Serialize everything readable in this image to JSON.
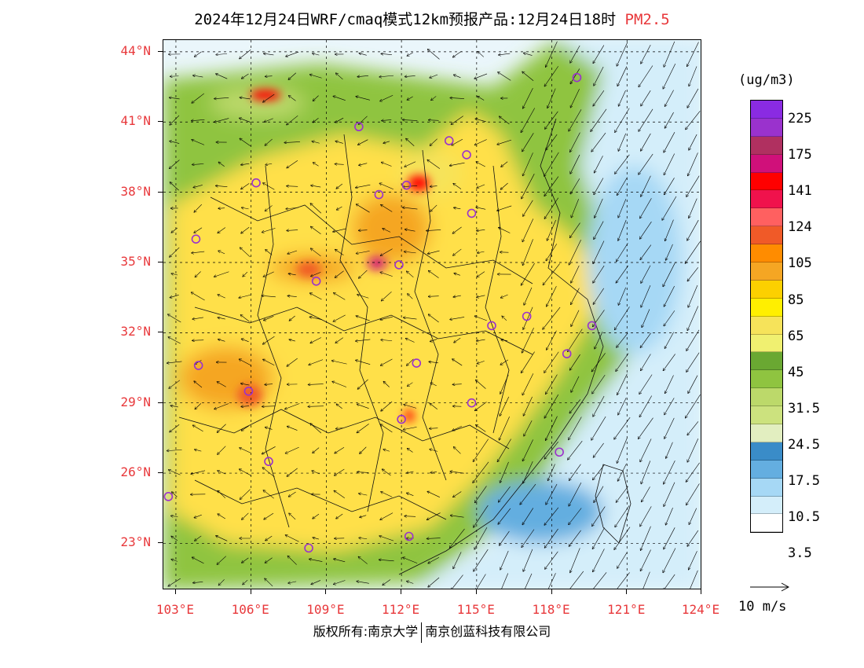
{
  "header": {
    "title": "2024年12月24日WRF/cmaq模式12km预报产品:12月24日18时",
    "pollutant": "PM2.5"
  },
  "map": {
    "lat_labels": [
      "44°N",
      "41°N",
      "38°N",
      "35°N",
      "32°N",
      "29°N",
      "26°N",
      "23°N"
    ],
    "lon_labels": [
      "103°E",
      "106°E",
      "109°E",
      "112°E",
      "115°E",
      "118°E",
      "121°E",
      "124°E"
    ],
    "lat_range": [
      21,
      44.5
    ],
    "lon_range": [
      102.5,
      124
    ],
    "cities": [
      {
        "lon": 119.0,
        "lat": 42.9
      },
      {
        "lon": 110.3,
        "lat": 40.8
      },
      {
        "lon": 113.9,
        "lat": 40.2
      },
      {
        "lon": 114.6,
        "lat": 39.6
      },
      {
        "lon": 106.2,
        "lat": 38.4
      },
      {
        "lon": 112.2,
        "lat": 38.3
      },
      {
        "lon": 111.1,
        "lat": 37.9
      },
      {
        "lon": 114.8,
        "lat": 37.1
      },
      {
        "lon": 103.8,
        "lat": 36.0
      },
      {
        "lon": 111.9,
        "lat": 34.9
      },
      {
        "lon": 108.6,
        "lat": 34.2
      },
      {
        "lon": 117.0,
        "lat": 32.7
      },
      {
        "lon": 115.6,
        "lat": 32.3
      },
      {
        "lon": 119.6,
        "lat": 32.3
      },
      {
        "lon": 103.9,
        "lat": 30.6
      },
      {
        "lon": 112.6,
        "lat": 30.7
      },
      {
        "lon": 118.6,
        "lat": 31.1
      },
      {
        "lon": 105.9,
        "lat": 29.5
      },
      {
        "lon": 114.8,
        "lat": 29.0
      },
      {
        "lon": 112.0,
        "lat": 28.3
      },
      {
        "lon": 118.3,
        "lat": 26.9
      },
      {
        "lon": 106.7,
        "lat": 26.5
      },
      {
        "lon": 102.7,
        "lat": 25.0
      },
      {
        "lon": 108.3,
        "lat": 22.8
      },
      {
        "lon": 112.3,
        "lat": 23.3
      }
    ]
  },
  "legend": {
    "unit": "(ug/m3)",
    "colors": [
      "#8a2be2",
      "#9a32cd",
      "#b03060",
      "#d0107a",
      "#ff0000",
      "#f0124c",
      "#ff6060",
      "#f05a28",
      "#ff8c00",
      "#f5a623",
      "#fcd000",
      "#ffef00",
      "#f6e35a",
      "#f0f070",
      "#6aa832",
      "#8fc440",
      "#bcd96a",
      "#cce27e",
      "#e2eec0",
      "#3a8cc8",
      "#64aee0",
      "#a6d8f5",
      "#d4eefa",
      "#ffffff"
    ],
    "labels": [
      "225",
      "175",
      "141",
      "124",
      "105",
      "85",
      "65",
      "45",
      "31.5",
      "24.5",
      "17.5",
      "10.5",
      "3.5"
    ]
  },
  "wind_scale": {
    "label": "10 m/s"
  },
  "footer": {
    "copyright": "版权所有:南京大学",
    "company": "南京创蓝科技有限公司"
  }
}
